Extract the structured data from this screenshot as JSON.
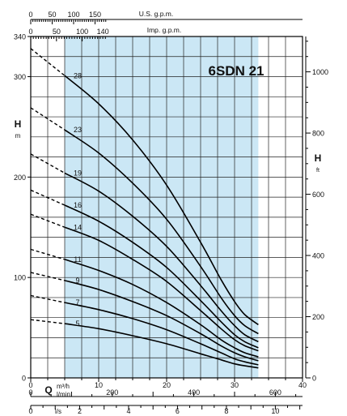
{
  "chart_data": {
    "type": "line",
    "title": "6SDN 21",
    "y_left": {
      "label": "H",
      "unit": "m",
      "range": [
        0,
        340
      ],
      "ticks": [
        0,
        100,
        200,
        300,
        340
      ]
    },
    "y_right": {
      "label": "H",
      "unit": "ft",
      "range": [
        0,
        1115.5
      ],
      "ticks": [
        0,
        200,
        400,
        600,
        800,
        1000
      ]
    },
    "x_q_m3h": {
      "label": "Q",
      "unit": "m³/h",
      "range": [
        0,
        40
      ],
      "ticks": [
        0,
        10,
        20,
        30,
        40
      ]
    },
    "x_lmin": {
      "unit": "l/min",
      "ticks": [
        0,
        200,
        400,
        600
      ]
    },
    "x_ls": {
      "unit": "l/s",
      "ticks": [
        0,
        2,
        4,
        6,
        8,
        10
      ]
    },
    "x_usgpm": {
      "label": "U.S. g.p.m.",
      "ticks": [
        0,
        50,
        100,
        150
      ]
    },
    "x_impgpm": {
      "label": "Imp. g.p.m.",
      "ticks": [
        0,
        50,
        100,
        140
      ]
    },
    "operating_range_m3h": [
      5,
      33.5
    ],
    "x": [
      0,
      5,
      10,
      15,
      20,
      25,
      28,
      30,
      31.5,
      33.5
    ],
    "series": [
      {
        "name": "28",
        "values": [
          328,
          301,
          273,
          237,
          192,
          135,
          98,
          76,
          63,
          53
        ]
      },
      {
        "name": "23",
        "values": [
          269,
          247,
          224,
          194,
          158,
          111,
          80,
          62,
          52,
          44
        ]
      },
      {
        "name": "19",
        "values": [
          223,
          204,
          186,
          161,
          131,
          92,
          67,
          52,
          43,
          36
        ]
      },
      {
        "name": "16",
        "values": [
          187,
          172,
          156,
          135,
          110,
          77,
          56,
          43,
          36,
          30
        ]
      },
      {
        "name": "14",
        "values": [
          163,
          150,
          137,
          118,
          96,
          67,
          49,
          38,
          32,
          27
        ]
      },
      {
        "name": "11",
        "values": [
          128,
          118,
          107,
          93,
          75,
          53,
          38,
          30,
          25,
          21
        ]
      },
      {
        "name": "9",
        "values": [
          105,
          97,
          88,
          76,
          62,
          44,
          32,
          25,
          21,
          17
        ]
      },
      {
        "name": "7",
        "values": [
          82,
          75,
          68,
          59,
          48,
          34,
          25,
          19,
          16,
          13
        ]
      },
      {
        "name": "5",
        "values": [
          58,
          54,
          49,
          42,
          34,
          24,
          18,
          14,
          12,
          10
        ]
      }
    ]
  }
}
